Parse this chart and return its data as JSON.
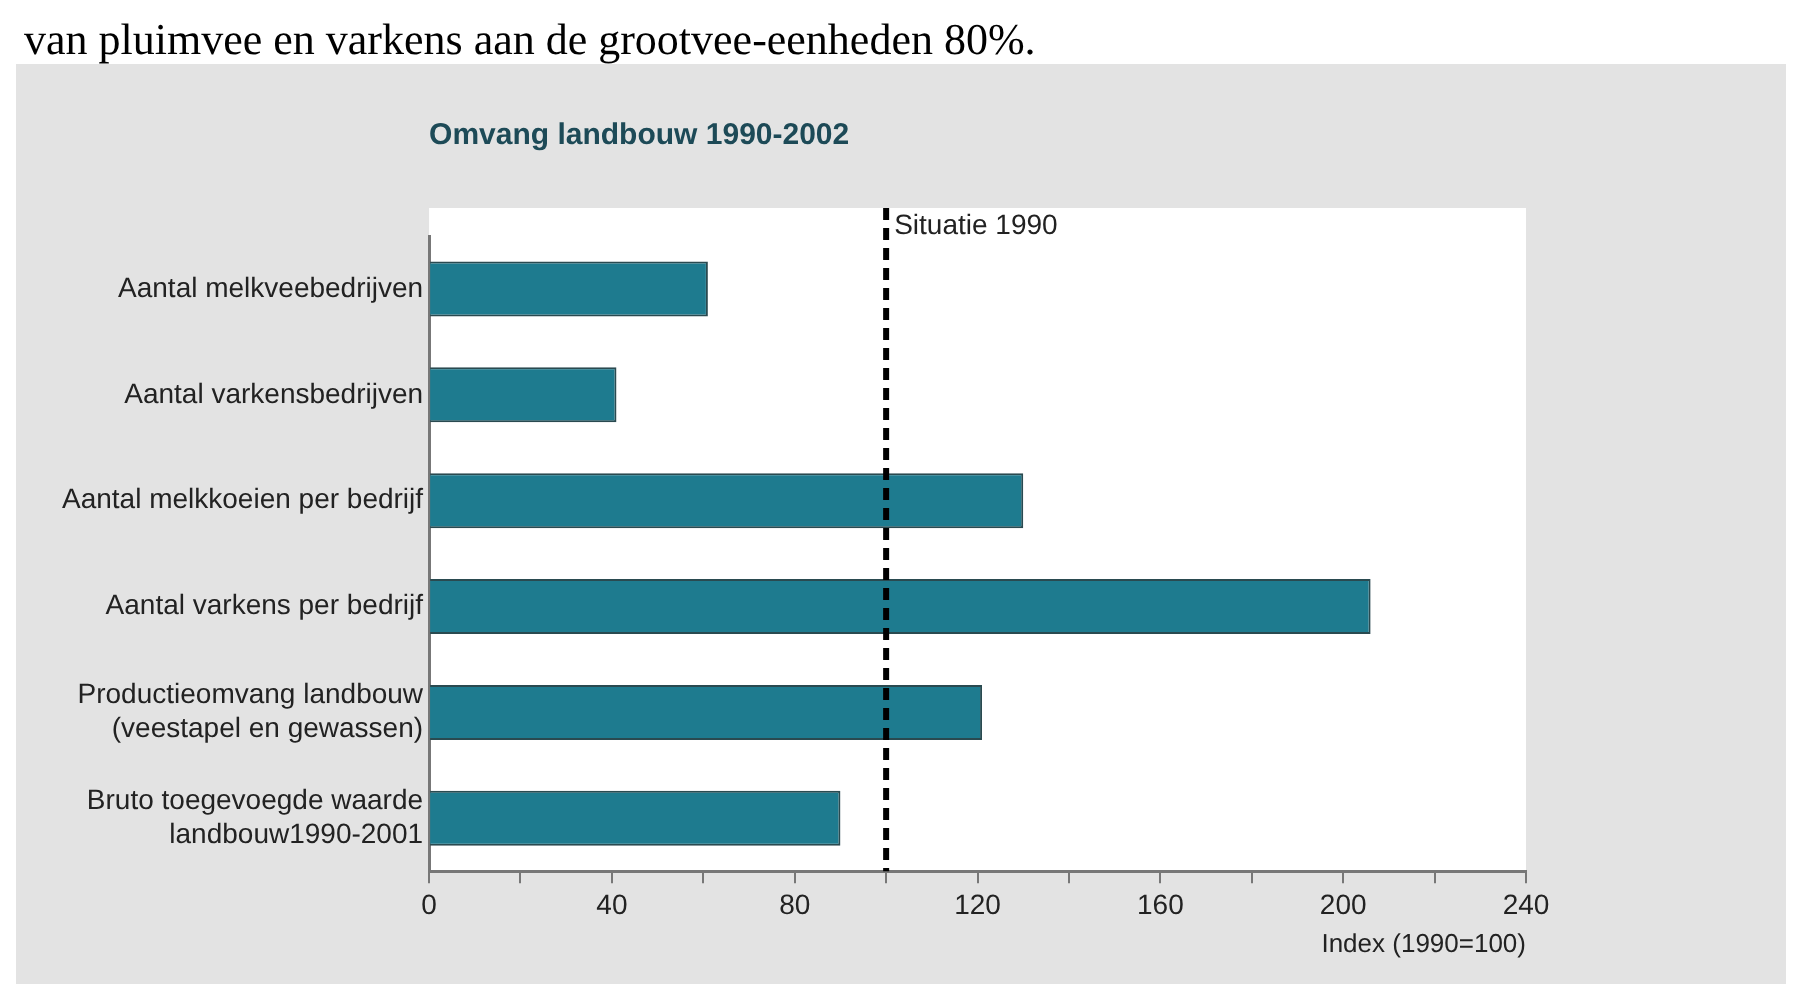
{
  "chart_data": {
    "type": "bar",
    "orientation": "horizontal",
    "title": "Omvang landbouw 1990-2002",
    "xlabel": "Index (1990=100)",
    "annotations": [
      "van pluimvee en varkens aan de grootvee-eenheden 80%."
    ],
    "categories": [
      "Aantal melkveebedrijven",
      "Aantal varkensbedrijven",
      "Aantal melkkoeien per bedrijf",
      "Aantal varkens per bedrijf",
      "Productieomvang landbouw\n(veestapel en gewassen)",
      "Bruto toegevoegde waarde\nlandbouw1990-2001"
    ],
    "values": [
      61,
      41,
      130,
      206,
      121,
      90
    ],
    "color": "#1e7b8f",
    "xlim": [
      0,
      240
    ],
    "xticks": [
      0,
      {
        "value": 20,
        "label": null
      },
      40,
      {
        "value": 60,
        "label": null
      },
      80,
      {
        "value": 100,
        "label": null
      },
      120,
      {
        "value": 140,
        "label": null
      },
      160,
      {
        "value": 180,
        "label": null
      },
      200,
      {
        "value": 220,
        "label": null
      },
      240
    ],
    "ref_lines": [
      {
        "axis": "x",
        "value": 100,
        "label": "Situatie 1990",
        "color": "#000000",
        "line_style": "dashed"
      }
    ],
    "grid": false,
    "legend": false
  }
}
